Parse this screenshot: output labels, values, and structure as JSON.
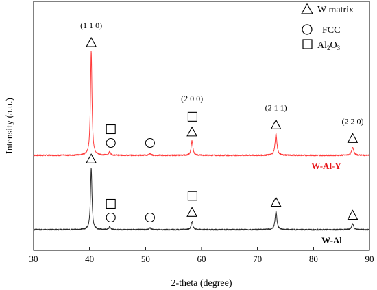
{
  "chart_data": {
    "type": "line",
    "title": "",
    "xlabel": "2-theta (degree)",
    "ylabel": "Intensity (a.u.)",
    "xlim": [
      30,
      90
    ],
    "xticks": [
      "30",
      "40",
      "50",
      "60",
      "70",
      "80",
      "90"
    ],
    "yticks": "none",
    "grid": false,
    "legend_position": "top-right",
    "legend": [
      {
        "marker": "triangle",
        "label": "W matrix"
      },
      {
        "marker": "circle",
        "label": "FCC"
      },
      {
        "marker": "square",
        "label_main": "Al",
        "label_sub": "2",
        "label_end": "O",
        "label_sub2": "3"
      }
    ],
    "series": [
      {
        "name": "W-Al-Y",
        "color": "#ff3b3b",
        "label_color": "#e8161a",
        "baseline": 0.2,
        "peaks": [
          {
            "x": 40.3,
            "height": 7.2,
            "width": 0.16
          },
          {
            "x": 43.6,
            "height": 0.25,
            "width": 0.18
          },
          {
            "x": 50.8,
            "height": 0.12,
            "width": 0.2
          },
          {
            "x": 58.3,
            "height": 1.0,
            "width": 0.18
          },
          {
            "x": 73.3,
            "height": 1.5,
            "width": 0.2
          },
          {
            "x": 87.0,
            "height": 0.55,
            "width": 0.22
          }
        ]
      },
      {
        "name": "W-Al",
        "color": "#2a2a2a",
        "label_color": "#000000",
        "baseline": 0.0,
        "peaks": [
          {
            "x": 40.3,
            "height": 4.3,
            "width": 0.16
          },
          {
            "x": 43.6,
            "height": 0.2,
            "width": 0.18
          },
          {
            "x": 50.8,
            "height": 0.12,
            "width": 0.2
          },
          {
            "x": 58.3,
            "height": 0.6,
            "width": 0.18
          },
          {
            "x": 73.3,
            "height": 1.3,
            "width": 0.2
          },
          {
            "x": 87.0,
            "height": 0.4,
            "width": 0.22
          }
        ]
      }
    ],
    "annotations": {
      "miller_labels": [
        {
          "x": 40.3,
          "text": "(1 1 0)"
        },
        {
          "x": 58.3,
          "text": "(2 0 0)"
        },
        {
          "x": 73.3,
          "text": "(2 1 1)"
        },
        {
          "x": 87.0,
          "text": "(2 2 0)"
        }
      ],
      "markers": [
        {
          "series": 0,
          "x": 40.3,
          "type": "triangle"
        },
        {
          "series": 0,
          "x": 43.8,
          "type": "square"
        },
        {
          "series": 0,
          "x": 43.8,
          "type": "circle"
        },
        {
          "series": 0,
          "x": 50.8,
          "type": "circle"
        },
        {
          "series": 0,
          "x": 58.4,
          "type": "square"
        },
        {
          "series": 0,
          "x": 58.3,
          "type": "triangle"
        },
        {
          "series": 0,
          "x": 73.3,
          "type": "triangle"
        },
        {
          "series": 0,
          "x": 87.0,
          "type": "triangle"
        },
        {
          "series": 1,
          "x": 40.3,
          "type": "triangle"
        },
        {
          "series": 1,
          "x": 43.8,
          "type": "square"
        },
        {
          "series": 1,
          "x": 43.8,
          "type": "circle"
        },
        {
          "series": 1,
          "x": 50.8,
          "type": "circle"
        },
        {
          "series": 1,
          "x": 58.4,
          "type": "square"
        },
        {
          "series": 1,
          "x": 58.3,
          "type": "triangle"
        },
        {
          "series": 1,
          "x": 73.3,
          "type": "triangle"
        },
        {
          "series": 1,
          "x": 87.0,
          "type": "triangle"
        }
      ]
    }
  }
}
